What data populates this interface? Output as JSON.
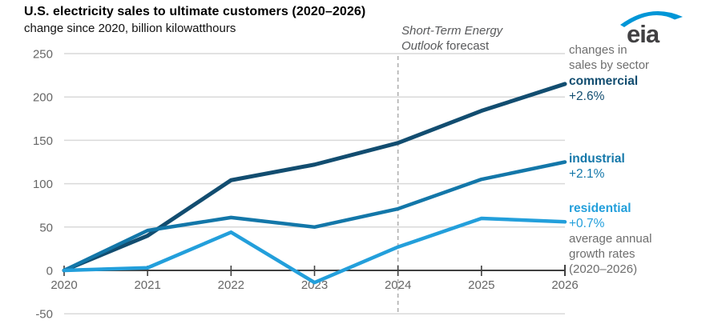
{
  "header": {
    "title": "U.S. electricity sales to ultimate customers (2020–2026)",
    "subtitle": "change since 2020, billion kilowatthours"
  },
  "logo": {
    "text": "eia"
  },
  "annotations": {
    "forecast_line1": "Short-Term Energy",
    "forecast_line2_italic": "Outlook",
    "forecast_line2_regular": " forecast"
  },
  "sidebar": {
    "heading_line1": "changes in",
    "heading_line2": "sales by sector",
    "items": [
      {
        "label": "commercial",
        "value": "+2.6%"
      },
      {
        "label": "industrial",
        "value": "+2.1%"
      },
      {
        "label": "residential",
        "value": "+0.7%"
      }
    ],
    "footnote_line1": "average annual",
    "footnote_line2": "growth rates",
    "footnote_line3": "(2020–2026)"
  },
  "colors": {
    "commercial": "#124d70",
    "industrial": "#1377a9",
    "residential": "#239fdb",
    "grid": "#d9d9d9",
    "axis": "#404040",
    "axis_text": "#666666",
    "dashed": "#b0b0b0",
    "logo_blue": "#0096d7",
    "logo_text": "#414042"
  },
  "chart_data": {
    "type": "line",
    "title": "U.S. electricity sales to ultimate customers (2020–2026)",
    "subtitle": "change since 2020, billion kilowatthours",
    "x": [
      2020,
      2021,
      2022,
      2023,
      2024,
      2025,
      2026
    ],
    "series": [
      {
        "name": "commercial",
        "annual_growth": "+2.6%",
        "color": "#124d70",
        "values": [
          0,
          40,
          104,
          122,
          147,
          184,
          215
        ]
      },
      {
        "name": "industrial",
        "annual_growth": "+2.1%",
        "color": "#1377a9",
        "values": [
          0,
          46,
          61,
          50,
          71,
          105,
          125
        ]
      },
      {
        "name": "residential",
        "annual_growth": "+0.7%",
        "color": "#239fdb",
        "values": [
          0,
          3,
          44,
          -14,
          27,
          60,
          56
        ]
      }
    ],
    "ylim": [
      -50,
      250
    ],
    "yticks": [
      250,
      200,
      150,
      100,
      50,
      0,
      -50
    ],
    "grid": true,
    "forecast_start_x": 2024,
    "forecast_label": "Short-Term Energy Outlook forecast",
    "legend_position": "right",
    "legend_heading": "changes in sales by sector",
    "legend_footnote": "average annual growth rates (2020–2026)"
  }
}
